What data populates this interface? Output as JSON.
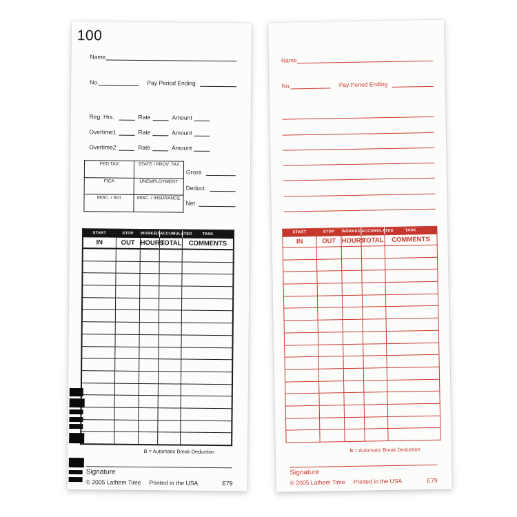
{
  "colors": {
    "black_ink": "#1f1f1f",
    "red_ink": "#c93a30",
    "black_header_bg": "#141414",
    "red_header_bg": "#c5362c"
  },
  "front_card": {
    "card_number": "100",
    "fields": {
      "name_label": "Name",
      "no_label": "No.",
      "pay_period_label": "Pay Period Ending"
    },
    "pay_rows": [
      {
        "label": "Reg. Hrs.",
        "rate_label": "Rate",
        "amount_label": "Amount"
      },
      {
        "label": "Overtime1",
        "rate_label": "Rate",
        "amount_label": "Amount"
      },
      {
        "label": "Overtime2",
        "rate_label": "Rate",
        "amount_label": "Amount"
      }
    ],
    "tax_table": {
      "rows": [
        [
          "FED TAX",
          "STATE / PROV. TAX"
        ],
        [
          "FICA",
          "UNEMPLOYMENT"
        ],
        [
          "MISC. / SDI",
          "MISC. / INSURANCE"
        ]
      ]
    },
    "totals": [
      {
        "label": "Gross"
      },
      {
        "label": "Deduct."
      },
      {
        "label": "Net"
      }
    ],
    "time_table": {
      "header_top": [
        "START",
        "STOP",
        "WORKED",
        "ACCUMULATED",
        "TASK"
      ],
      "header_bottom": [
        "IN",
        "OUT",
        "HOURS",
        "TOTAL",
        "COMMENTS"
      ],
      "empty_row_count": 16
    },
    "break_note": "B = Automatic Break Deduction",
    "signature_label": "Signature",
    "footer": {
      "copyright": "© 2005 Lathem Time",
      "printed": "Printed in the USA",
      "model": "E79"
    }
  },
  "back_card": {
    "fields": {
      "name_label": "Name",
      "no_label": "No.",
      "pay_period_label": "Pay Period Ending"
    },
    "ruled_line_count": 7,
    "time_table": {
      "header_top": [
        "START",
        "STOP",
        "WORKED",
        "ACCUMULATED",
        "TASK"
      ],
      "header_bottom": [
        "IN",
        "OUT",
        "HOURS",
        "TOTAL",
        "COMMENTS"
      ],
      "empty_row_count": 16
    },
    "break_note": "B = Automatic Break Deduction",
    "signature_label": "Signature",
    "footer": {
      "copyright": "© 2005 Lathem Time",
      "printed": "Printed in the USA",
      "model": "E79"
    }
  }
}
